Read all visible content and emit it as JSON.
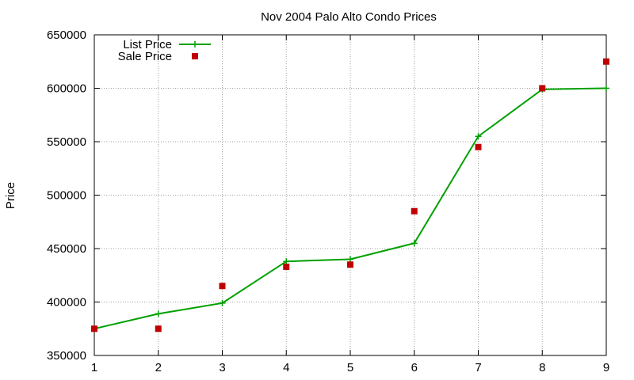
{
  "chart_data": {
    "type": "line",
    "title": "Nov 2004 Palo Alto Condo Prices",
    "xlabel": "",
    "ylabel": "Price",
    "xlim": [
      1,
      9
    ],
    "ylim": [
      350000,
      650000
    ],
    "x_ticks": [
      1,
      2,
      3,
      4,
      5,
      6,
      7,
      8,
      9
    ],
    "y_ticks": [
      350000,
      400000,
      450000,
      500000,
      550000,
      600000,
      650000
    ],
    "grid": true,
    "legend_position": "top-left",
    "series": [
      {
        "name": "List Price",
        "style": "line-with-plus-markers",
        "color": "#00a000",
        "x": [
          1,
          2,
          3,
          4,
          5,
          6,
          7,
          8,
          9
        ],
        "y": [
          375000,
          389000,
          399000,
          438000,
          440000,
          455000,
          555000,
          599000,
          600000
        ]
      },
      {
        "name": "Sale Price",
        "style": "square-points",
        "color": "#c00000",
        "x": [
          1,
          2,
          3,
          4,
          5,
          6,
          7,
          8,
          9
        ],
        "y": [
          375000,
          375000,
          415000,
          433000,
          435000,
          485000,
          545000,
          600000,
          625000
        ]
      }
    ]
  }
}
